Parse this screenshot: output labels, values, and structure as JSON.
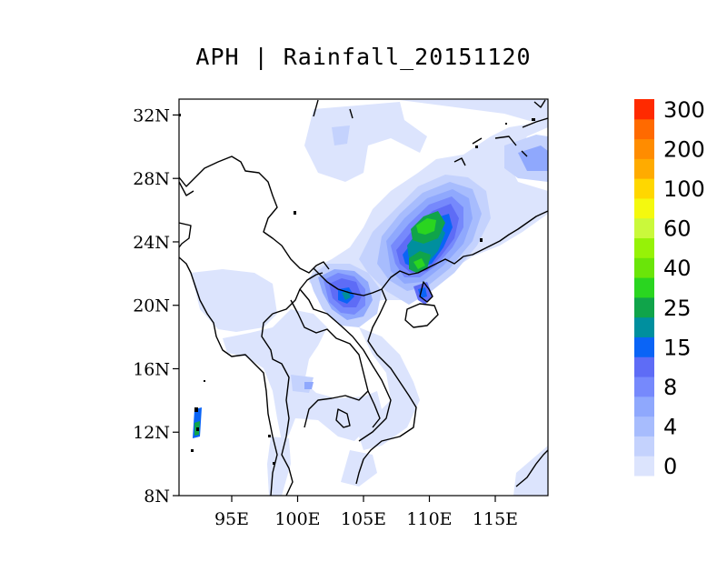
{
  "title": "APH | Rainfall_20151120",
  "map": {
    "lat_range": [
      8,
      33
    ],
    "lon_range": [
      91,
      119
    ],
    "lat_ticks": [
      {
        "label": "32N",
        "value": 32
      },
      {
        "label": "28N",
        "value": 28
      },
      {
        "label": "24N",
        "value": 24
      },
      {
        "label": "20N",
        "value": 20
      },
      {
        "label": "16N",
        "value": 16
      },
      {
        "label": "12N",
        "value": 12
      },
      {
        "label": "8N",
        "value": 8
      }
    ],
    "lon_ticks": [
      {
        "label": "95E",
        "value": 95
      },
      {
        "label": "100E",
        "value": 100
      },
      {
        "label": "105E",
        "value": 105
      },
      {
        "label": "110E",
        "value": 110
      },
      {
        "label": "115E",
        "value": 115
      }
    ]
  },
  "colorbar": {
    "colors": [
      "#dce4fd",
      "#c4d2fd",
      "#a7bcfd",
      "#8fa8fd",
      "#7689fc",
      "#5e6cf6",
      "#0a64f6",
      "#008f9e",
      "#10a44a",
      "#2ad520",
      "#6ae509",
      "#96f207",
      "#caf93b",
      "#f4f90f",
      "#ffd700",
      "#ffab00",
      "#ff8c00",
      "#ff6a00",
      "#ff2a00"
    ],
    "labels": [
      {
        "text": "0",
        "index": 0
      },
      {
        "text": "4",
        "index": 2
      },
      {
        "text": "8",
        "index": 4
      },
      {
        "text": "15",
        "index": 6
      },
      {
        "text": "25",
        "index": 8
      },
      {
        "text": "40",
        "index": 10
      },
      {
        "text": "60",
        "index": 12
      },
      {
        "text": "100",
        "index": 14
      },
      {
        "text": "200",
        "index": 16
      },
      {
        "text": "300",
        "index": 18
      }
    ]
  }
}
